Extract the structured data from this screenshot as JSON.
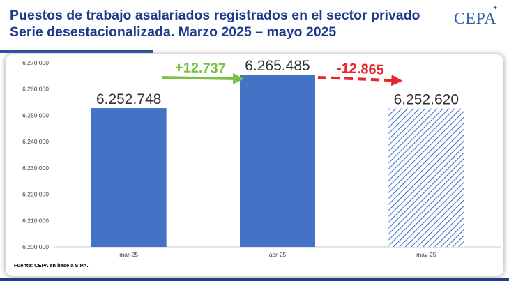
{
  "header": {
    "title_line1": "Puestos de trabajo asalariados registrados en el sector privado",
    "title_line2": "Serie desestacionalizada. Marzo 2025 – mayo 2025",
    "logo": "CEPA"
  },
  "footer": {
    "source": "Fuente: CEPA en base a SIPA."
  },
  "colors": {
    "title": "#1f3a8a",
    "bar": "#4472c4",
    "hatch": "#4472c4",
    "increase": "#7ac143",
    "decrease": "#e8262a",
    "accent_bar": "#1e3e8c"
  },
  "chart_data": {
    "type": "bar",
    "categories": [
      "mar-25",
      "abr-25",
      "may-25"
    ],
    "values": [
      6252748,
      6265485,
      6252620
    ],
    "value_labels": [
      "6.252.748",
      "6.265.485",
      "6.252.620"
    ],
    "bar_styles": [
      "solid",
      "solid",
      "hatched"
    ],
    "ylim": [
      6200000,
      6270000
    ],
    "yticks": [
      6200000,
      6210000,
      6220000,
      6230000,
      6240000,
      6250000,
      6260000,
      6270000
    ],
    "ytick_labels": [
      "6.200.000",
      "6.210.000",
      "6.220.000",
      "6.230.000",
      "6.240.000",
      "6.250.000",
      "6.260.000",
      "6.270.000"
    ],
    "annotations": [
      {
        "text": "+12.737",
        "from": "mar-25",
        "to": "abr-25",
        "color": "#7ac143",
        "style": "solid-arrow"
      },
      {
        "text": "-12.865",
        "from": "abr-25",
        "to": "may-25",
        "color": "#e8262a",
        "style": "dashed-arrow"
      }
    ],
    "grid": false,
    "legend": "none"
  }
}
